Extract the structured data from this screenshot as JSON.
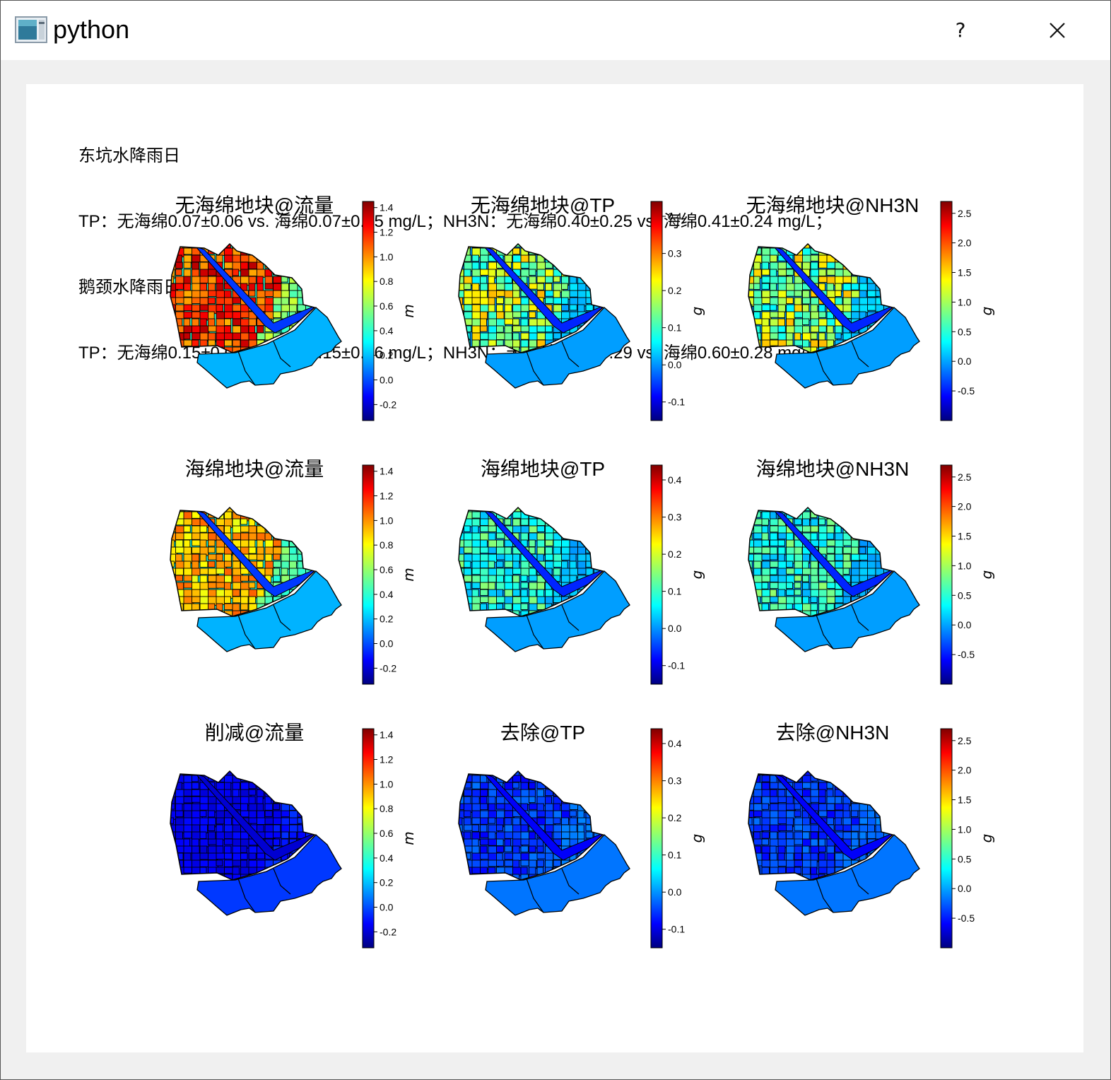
{
  "window": {
    "title": "python",
    "help_label": "?"
  },
  "summary": {
    "lines": [
      "东坑水降雨日",
      "TP：无海绵0.07±0.06 vs. 海绵0.07±0.05 mg/L；NH3N：无海绵0.40±0.25 vs. 海绵0.41±0.24 mg/L；",
      "鹅颈水降雨日",
      "TP：无海绵0.15±0.07 vs. 海绵0.15±0.06 mg/L；NH3N：无海绵0.59±0.29 vs. 海绵0.60±0.28 mg/L；"
    ]
  },
  "colors": {
    "colormap": "jet",
    "edge": "#000000",
    "background": "#ffffff"
  },
  "chart_data": [
    {
      "type": "heatmap",
      "title": "无海绵地块@流量",
      "colorbar_label": "m",
      "colorbar_ticks": [
        "1.4",
        "1.2",
        "1.0",
        "0.8",
        "0.6",
        "0.4",
        "0.2",
        "0.0",
        "-0.2"
      ],
      "vmin": -0.33,
      "vmax": 1.45,
      "map_level": "high"
    },
    {
      "type": "heatmap",
      "title": "无海绵地块@TP",
      "colorbar_label": "g",
      "colorbar_ticks": [
        "0.4",
        "0.3",
        "0.2",
        "0.1",
        "0.0",
        "-0.1"
      ],
      "vmin": -0.15,
      "vmax": 0.44,
      "map_level": "mid"
    },
    {
      "type": "heatmap",
      "title": "无海绵地块@NH3N",
      "colorbar_label": "g",
      "colorbar_ticks": [
        "2.5",
        "2.0",
        "1.5",
        "1.0",
        "0.5",
        "0.0",
        "-0.5"
      ],
      "vmin": -1.0,
      "vmax": 2.7,
      "map_level": "mid"
    },
    {
      "type": "heatmap",
      "title": "海绵地块@流量",
      "colorbar_label": "m",
      "colorbar_ticks": [
        "1.4",
        "1.2",
        "1.0",
        "0.8",
        "0.6",
        "0.4",
        "0.2",
        "0.0",
        "-0.2"
      ],
      "vmin": -0.33,
      "vmax": 1.45,
      "map_level": "midhigh"
    },
    {
      "type": "heatmap",
      "title": "海绵地块@TP",
      "colorbar_label": "g",
      "colorbar_ticks": [
        "0.4",
        "0.3",
        "0.2",
        "0.1",
        "0.0",
        "-0.1"
      ],
      "vmin": -0.15,
      "vmax": 0.44,
      "map_level": "lowmid"
    },
    {
      "type": "heatmap",
      "title": "海绵地块@NH3N",
      "colorbar_label": "g",
      "colorbar_ticks": [
        "2.5",
        "2.0",
        "1.5",
        "1.0",
        "0.5",
        "0.0",
        "-0.5"
      ],
      "vmin": -1.0,
      "vmax": 2.7,
      "map_level": "lowmid"
    },
    {
      "type": "heatmap",
      "title": "削减@流量",
      "colorbar_label": "m",
      "colorbar_ticks": [
        "1.4",
        "1.2",
        "1.0",
        "0.8",
        "0.6",
        "0.4",
        "0.2",
        "0.0",
        "-0.2"
      ],
      "vmin": -0.33,
      "vmax": 1.45,
      "map_level": "verylow"
    },
    {
      "type": "heatmap",
      "title": "去除@TP",
      "colorbar_label": "g",
      "colorbar_ticks": [
        "0.4",
        "0.3",
        "0.2",
        "0.1",
        "0.0",
        "-0.1"
      ],
      "vmin": -0.15,
      "vmax": 0.44,
      "map_level": "low"
    },
    {
      "type": "heatmap",
      "title": "去除@NH3N",
      "colorbar_label": "g",
      "colorbar_ticks": [
        "2.5",
        "2.0",
        "1.5",
        "1.0",
        "0.5",
        "0.0",
        "-0.5"
      ],
      "vmin": -1.0,
      "vmax": 2.7,
      "map_level": "low"
    }
  ]
}
